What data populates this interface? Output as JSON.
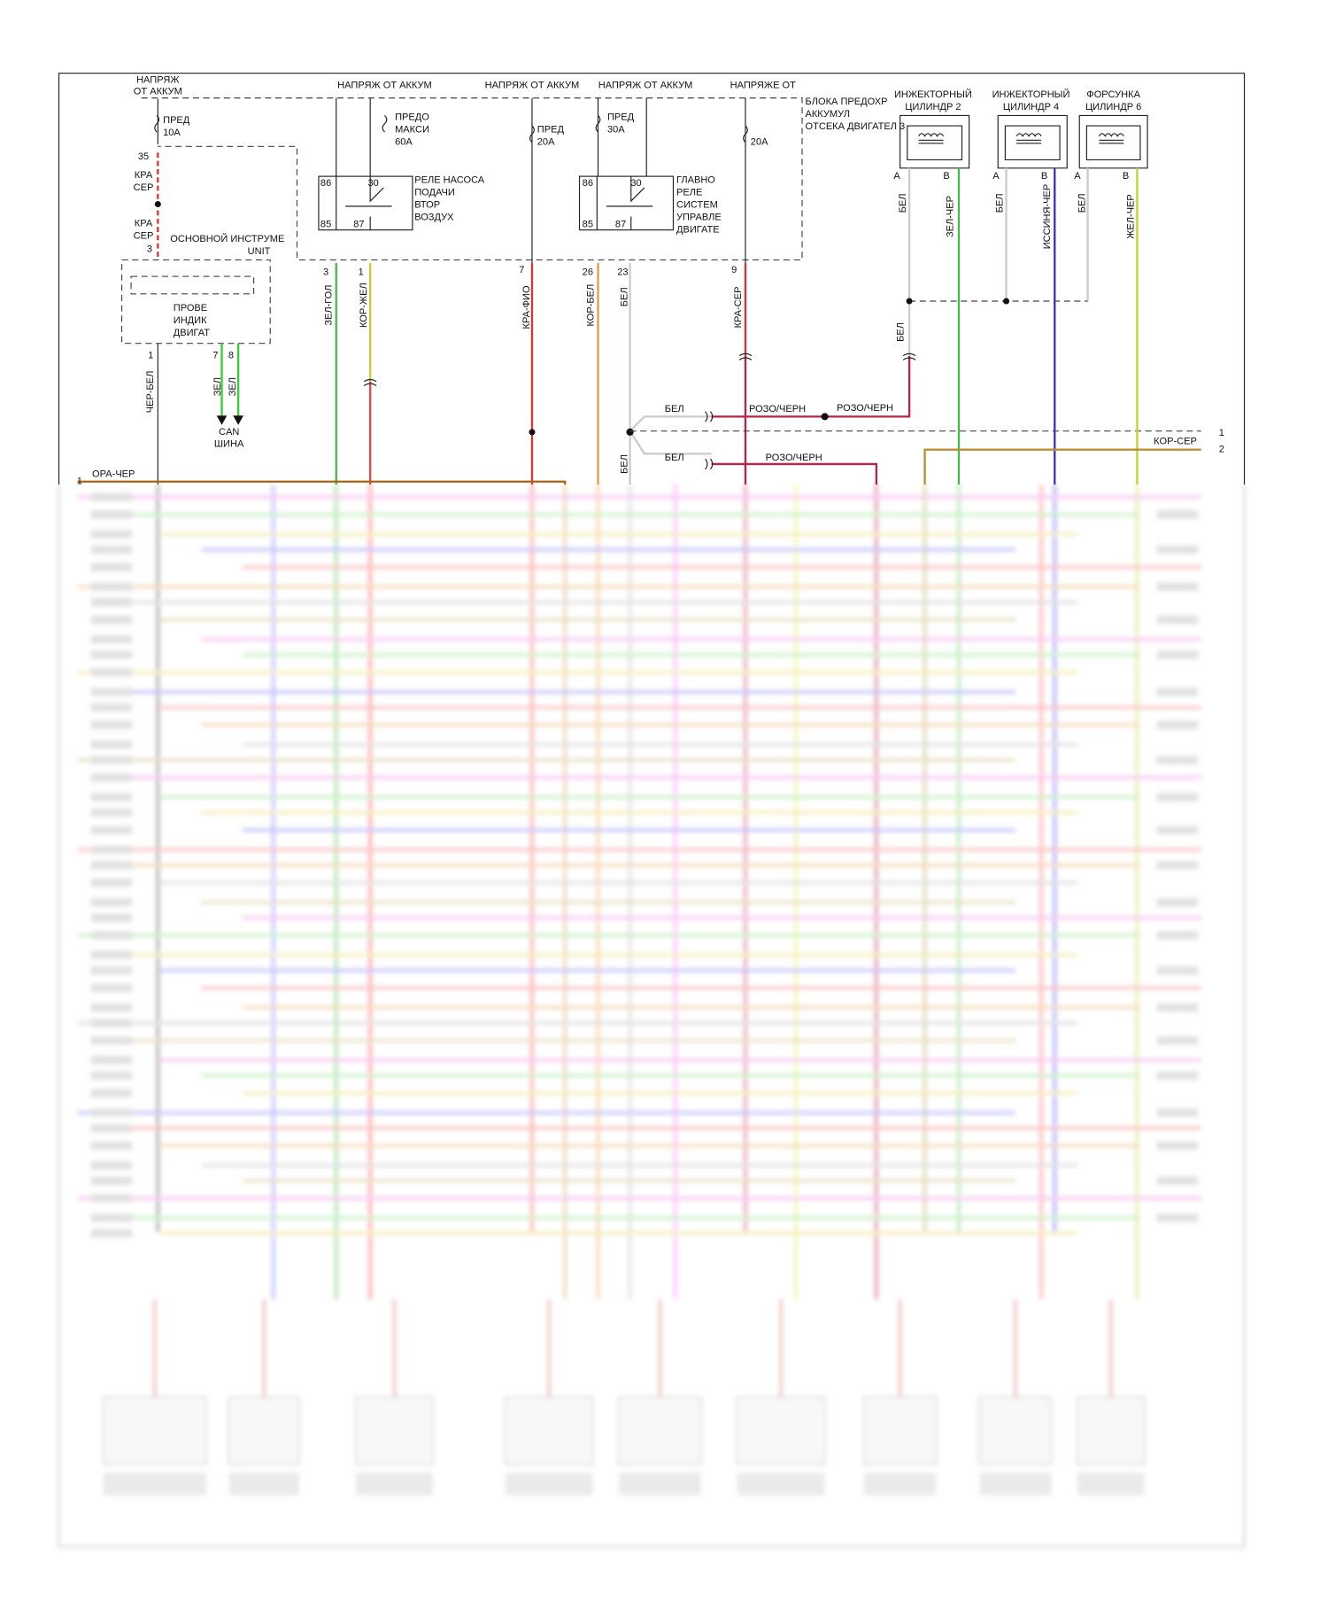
{
  "power_sources": [
    [
      "НАПРЯЖ",
      "ОТ АККУМ"
    ],
    "НАПРЯЖ ОТ АККУМ",
    "НАПРЯЖ ОТ АККУМ",
    "НАПРЯЖ ОТ АККУМ",
    "НАПРЯЖЕ ОТ"
  ],
  "fuse_box": [
    "БЛОКА ПРЕДОХР",
    "АККУМУЛ",
    "ОТСЕКА ДВИГАТЕЛ 3"
  ],
  "fuses": [
    {
      "name": [
        "ПРЕД"
      ],
      "rating": "10A"
    },
    {
      "name": [
        "ПРЕДО",
        "МАКСИ"
      ],
      "rating": "60A"
    },
    {
      "name": [
        "ПРЕД"
      ],
      "rating": "20A"
    },
    {
      "name": [
        "ПРЕД"
      ],
      "rating": "30A"
    },
    {
      "rating": "20A"
    }
  ],
  "instrument_cluster": {
    "title": [
      "ОСНОВНОЙ ИНСТРУМЕ",
      "UNIT"
    ],
    "lamp": [
      "ПРОВЕ",
      "ИНДИК",
      "ДВИГАТ"
    ],
    "pins": [
      "35",
      "3",
      "1",
      "7",
      "8"
    ]
  },
  "relays": [
    {
      "name": [
        "РЕЛЕ НАСОСА",
        "ПОДАЧИ",
        "ВТОР",
        "ВОЗДУХ"
      ],
      "pins": [
        "86",
        "30",
        "85",
        "87"
      ],
      "connector_pins": [
        "3",
        "1"
      ]
    },
    {
      "name": [
        "ГЛАВНО",
        "РЕЛЕ",
        "СИСТЕМ",
        "УПРАВЛЕ",
        "ДВИГАТЕ"
      ],
      "pins": [
        "86",
        "30",
        "85",
        "87"
      ],
      "connector_pins": [
        "26",
        "23"
      ]
    }
  ],
  "connector_pins": [
    "7",
    "9"
  ],
  "injectors": [
    {
      "name": [
        "ИНЖЕКТОРНЫЙ",
        "ЦИЛИНДР 2"
      ],
      "pins": [
        "A",
        "B"
      ],
      "wires": [
        "БЕЛ",
        "ЗЕЛ-ЧЕР"
      ]
    },
    {
      "name": [
        "ИНЖЕКТОРНЫЙ",
        "ЦИЛИНДР 4"
      ],
      "pins": [
        "A",
        "B"
      ],
      "wires": [
        "БЕЛ",
        "ИССИНЯ-ЧЕР"
      ]
    },
    {
      "name": [
        "ФОРСУНКА",
        "ЦИЛИНДР 6"
      ],
      "pins": [
        "A",
        "B"
      ],
      "wires": [
        "БЕЛ",
        "ЖЕЛ-ЧЕР"
      ]
    }
  ],
  "wire_labels": [
    "КРА",
    "СЕР",
    "КРА",
    "СЕР",
    "ЧЕР-БЕЛ",
    "ЗЕЛ",
    "ЗЕЛ",
    "ЗЕЛ-ГОЛ",
    "КОР-ЖЕЛ",
    "КРА-ФИО",
    "КОР-БЕЛ",
    "БЕЛ",
    "КРА-СЕР",
    "БЕЛ",
    "БЕЛ",
    "РОЗО/ЧЕРН",
    "РОЗО/ЧЕРН",
    "БЕЛ",
    "РОЗО/ЧЕРН",
    "БЕЛ",
    "ОРА-ЧЕР",
    "КОР-СЕР"
  ],
  "can_bus": [
    "CAN",
    "ШИНА"
  ],
  "ecm_pins": [
    "1",
    "1",
    "2"
  ]
}
